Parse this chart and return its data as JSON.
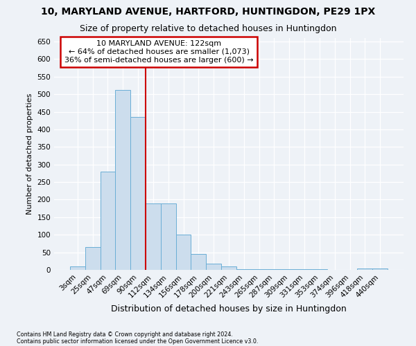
{
  "title": "10, MARYLAND AVENUE, HARTFORD, HUNTINGDON, PE29 1PX",
  "subtitle": "Size of property relative to detached houses in Huntingdon",
  "xlabel": "Distribution of detached houses by size in Huntingdon",
  "ylabel": "Number of detached properties",
  "bar_color": "#ccdded",
  "bar_edge_color": "#6aaed6",
  "categories": [
    "3sqm",
    "25sqm",
    "47sqm",
    "69sqm",
    "90sqm",
    "112sqm",
    "134sqm",
    "156sqm",
    "178sqm",
    "200sqm",
    "221sqm",
    "243sqm",
    "265sqm",
    "287sqm",
    "309sqm",
    "331sqm",
    "353sqm",
    "374sqm",
    "396sqm",
    "418sqm",
    "440sqm"
  ],
  "values": [
    10,
    65,
    280,
    512,
    435,
    190,
    190,
    100,
    45,
    18,
    10,
    2,
    2,
    2,
    2,
    2,
    2,
    0,
    0,
    3,
    3
  ],
  "ylim": [
    0,
    660
  ],
  "yticks": [
    0,
    50,
    100,
    150,
    200,
    250,
    300,
    350,
    400,
    450,
    500,
    550,
    600,
    650
  ],
  "property_line_x": 5.0,
  "annotation_box_text": "10 MARYLAND AVENUE: 122sqm\n← 64% of detached houses are smaller (1,073)\n36% of semi-detached houses are larger (600) →",
  "footnote1": "Contains HM Land Registry data © Crown copyright and database right 2024.",
  "footnote2": "Contains public sector information licensed under the Open Government Licence v3.0.",
  "bg_color": "#eef2f7",
  "grid_color": "#ffffff",
  "line_color": "#cc0000",
  "title_fontsize": 10,
  "subtitle_fontsize": 9,
  "ylabel_fontsize": 8,
  "xlabel_fontsize": 9,
  "annot_fontsize": 8,
  "tick_fontsize": 7.5
}
